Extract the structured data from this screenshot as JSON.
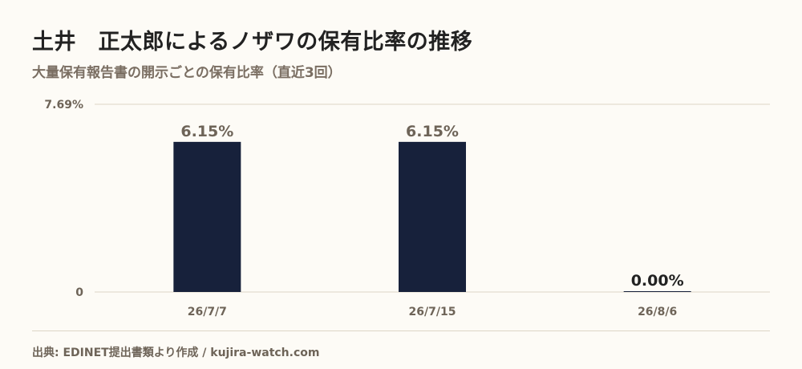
{
  "title": "土井　正太郎によるノザワの保有比率の推移",
  "subtitle": "大量保有報告書の開示ごとの保有比率（直近3回）",
  "source": "出典: EDINET提出書類より作成 / kujira-watch.com",
  "colors": {
    "bar": "#17213b",
    "background": "#fdfbf6",
    "grid": "#ddd5c6",
    "tick_text": "#6e6458",
    "label_text": "#6e6458"
  },
  "chart_data": {
    "type": "bar",
    "categories": [
      "26/7/7",
      "26/7/15",
      "26/8/6"
    ],
    "values": [
      6.15,
      6.15,
      0.0
    ],
    "value_labels": [
      "6.15%",
      "6.15%",
      "0.00%"
    ],
    "ylim": [
      0,
      7.69
    ],
    "yticks": [
      {
        "value": 0,
        "label": "0"
      },
      {
        "value": 7.69,
        "label": "7.69%"
      }
    ],
    "xlabel": "",
    "ylabel": "",
    "grid": true
  }
}
